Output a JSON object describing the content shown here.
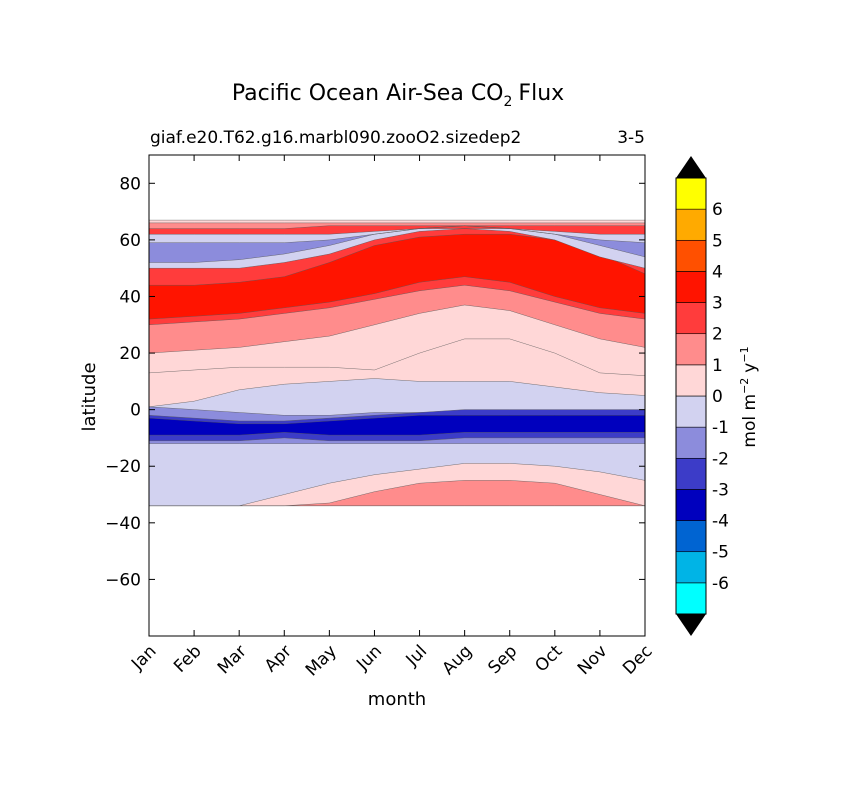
{
  "chart_data": {
    "type": "heatmap",
    "title_main": "Pacific Ocean Air-Sea CO",
    "title_sub": "2",
    "title_end": "Flux",
    "case_name": "giaf.e20.T62.g16.marbl090.zooO2.sizedep2",
    "year_range": "3-5",
    "xlabel": "month",
    "ylabel": "latitude",
    "ylim": [
      -80,
      90
    ],
    "x_tick_labels": [
      "Jan",
      "Feb",
      "Mar",
      "Apr",
      "May",
      "Jun",
      "Jul",
      "Aug",
      "Sep",
      "Oct",
      "Nov",
      "Dec"
    ],
    "y_ticks": [
      80,
      60,
      40,
      20,
      0,
      -20,
      -40,
      -60
    ],
    "y_tick_labels": [
      "80",
      "60",
      "40",
      "20",
      "0",
      "−20",
      "−40",
      "−60"
    ],
    "data_lat_range": [
      -34,
      67
    ],
    "colorbar": {
      "label_main": "mol m",
      "label_exp1": "−2",
      "label_mid": "y",
      "label_exp2": "−1",
      "levels": [
        -7,
        -6,
        -5,
        -4,
        -3,
        -2,
        -1,
        0,
        1,
        2,
        3,
        4,
        5,
        6,
        7
      ],
      "tick_labels": [
        "-6",
        "-5",
        "-4",
        "-3",
        "-2",
        "-1",
        "0",
        "1",
        "2",
        "3",
        "4",
        "5",
        "6"
      ],
      "colors": [
        "#00ffff",
        "#00b4e6",
        "#0064d2",
        "#0000be",
        "#3c3cc8",
        "#8c8cdc",
        "#d2d2f0",
        "#ffd7d7",
        "#ff8c8c",
        "#ff3c3c",
        "#ff1400",
        "#ff5000",
        "#ffaa00",
        "#ffff00"
      ],
      "extend_color": "#000000"
    },
    "contour_bands": [
      {
        "level": "-1 to 0",
        "lat_south": [
          -34,
          -34,
          -34,
          -34,
          -34,
          -34,
          -34,
          -34,
          -34,
          -34,
          -34,
          -34
        ],
        "lat_north": [
          1,
          3,
          7,
          9,
          10,
          11,
          10,
          10,
          10,
          8,
          6,
          5
        ]
      },
      {
        "level": "-2 to -1",
        "lat_south": [
          -12,
          -12,
          -12,
          -12,
          -12,
          -12,
          -12,
          -12,
          -12,
          -12,
          -12,
          -12
        ],
        "lat_north": [
          1,
          0,
          -1,
          -2,
          -2,
          -1,
          -1,
          -1,
          -1,
          -1,
          -1,
          -1
        ]
      },
      {
        "level": "-3 to -2",
        "lat_south": [
          -11,
          -11,
          -11,
          -10,
          -11,
          -11,
          -11,
          -10,
          -10,
          -10,
          -10,
          -10
        ],
        "lat_north": [
          -2,
          -3,
          -4,
          -4,
          -3,
          -2,
          -1,
          0,
          0,
          0,
          0,
          0
        ]
      },
      {
        "level": "-4 to -3",
        "lat_south": [
          -9,
          -9,
          -9,
          -8,
          -9,
          -9,
          -9,
          -8,
          -8,
          -8,
          -8,
          -8
        ],
        "lat_north": [
          -3,
          -4,
          -5,
          -5,
          -4,
          -3,
          -2,
          -2,
          -2,
          -2,
          -2,
          -2
        ]
      },
      {
        "level": "0 to 1 (south)",
        "lat_south": [
          -34,
          -34,
          -34,
          -34,
          -34,
          -34,
          -34,
          -34,
          -34,
          -34,
          -34,
          -34
        ],
        "lat_north": [
          -34,
          -34,
          -34,
          -30,
          -26,
          -23,
          -21,
          -19,
          -19,
          -20,
          -22,
          -25
        ]
      },
      {
        "level": "1 to 2 (south)",
        "lat_south": [
          -34,
          -34,
          -34,
          -34,
          -34,
          -34,
          -34,
          -34,
          -34,
          -34,
          -34,
          -34
        ],
        "lat_north": [
          -34,
          -34,
          -34,
          -34,
          -33,
          -29,
          -26,
          -25,
          -25,
          -26,
          -30,
          -34
        ]
      },
      {
        "level": "0 to 1 (north)",
        "lat_south": [
          13,
          14,
          15,
          15,
          15,
          14,
          20,
          25,
          25,
          20,
          13,
          12
        ],
        "lat_north": [
          67,
          67,
          67,
          67,
          67,
          67,
          67,
          67,
          67,
          67,
          67,
          67
        ]
      },
      {
        "level": "1 to 2 (north)",
        "lat_south": [
          20,
          21,
          22,
          24,
          26,
          30,
          34,
          37,
          35,
          30,
          25,
          22
        ],
        "lat_north": [
          66,
          66,
          66,
          66,
          66,
          66,
          66,
          66,
          66,
          66,
          66,
          66
        ]
      },
      {
        "level": "2 to 3 (north)",
        "lat_south": [
          30,
          31,
          32,
          34,
          36,
          39,
          42,
          44,
          42,
          38,
          34,
          32
        ],
        "lat_north": [
          64,
          64,
          64,
          64,
          65,
          65,
          65,
          65,
          65,
          65,
          65,
          65
        ]
      },
      {
        "level": "3 to 4 (north)",
        "lat_south": [
          32,
          33,
          34,
          36,
          38,
          41,
          45,
          47,
          45,
          40,
          36,
          34
        ],
        "lat_north": [
          44,
          44,
          45,
          47,
          52,
          58,
          61,
          62,
          62,
          60,
          55,
          48
        ]
      },
      {
        "level": "-1 to 0 (subpolar)",
        "lat_south": [
          50,
          50,
          50,
          52,
          55,
          60,
          63,
          64,
          63,
          60,
          54,
          50
        ],
        "lat_north": [
          62,
          62,
          62,
          62,
          62,
          63,
          64,
          64,
          64,
          63,
          62,
          62
        ]
      },
      {
        "level": "-2 to -1 (subpolar)",
        "lat_south": [
          52,
          52,
          53,
          55,
          58,
          62,
          64,
          65,
          64,
          62,
          58,
          54
        ],
        "lat_north": [
          59,
          59,
          59,
          59,
          60,
          62,
          64,
          65,
          64,
          62,
          60,
          59
        ]
      }
    ]
  }
}
